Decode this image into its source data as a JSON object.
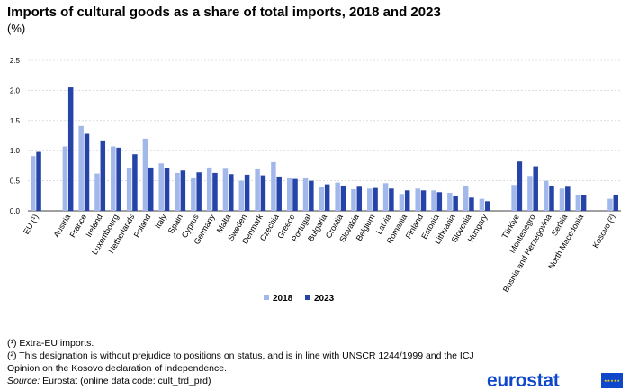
{
  "header": {
    "title": "Imports of cultural goods as a share of total imports, 2018 and 2023",
    "subtitle": "(%)"
  },
  "chart_data": {
    "type": "bar",
    "title": "Imports of cultural goods as a share of total imports, 2018 and 2023",
    "subtitle": "(%)",
    "xlabel": "",
    "ylabel": "",
    "ylim": [
      0,
      2.5
    ],
    "yticks": [
      "0.0",
      "0.5",
      "1.0",
      "1.5",
      "2.0",
      "2.5"
    ],
    "grid": true,
    "legend_position": "bottom-center",
    "categories": [
      "EU (¹)",
      "",
      "Austria",
      "France",
      "Ireland",
      "Luxembourg",
      "Netherlands",
      "Poland",
      "Italy",
      "Spain",
      "Cyprus",
      "Germany",
      "Malta",
      "Sweden",
      "Denmark",
      "Czechia",
      "Greece",
      "Portugal",
      "Bulgaria",
      "Croatia",
      "Slovakia",
      "Belgium",
      "Latvia",
      "Romania",
      "Finland",
      "Estonia",
      "Lithuania",
      "Slovenia",
      "Hungary",
      "",
      "Türkiye",
      "Montenegro",
      "Bosnia and Herzegovina",
      "Serbia",
      "North Macedonia",
      "",
      "Kosovo (²)"
    ],
    "series": [
      {
        "name": "2018",
        "color": "#a3b8ea",
        "values": [
          0.91,
          null,
          1.07,
          1.41,
          0.62,
          1.07,
          0.71,
          1.2,
          0.79,
          0.63,
          0.54,
          0.72,
          0.7,
          0.5,
          0.69,
          0.81,
          0.54,
          0.54,
          0.39,
          0.47,
          0.36,
          0.37,
          0.46,
          0.28,
          0.37,
          0.34,
          0.3,
          0.42,
          0.2,
          null,
          0.43,
          0.58,
          0.5,
          0.37,
          0.26,
          null,
          0.2
        ]
      },
      {
        "name": "2023",
        "color": "#2644a7",
        "values": [
          0.98,
          null,
          2.05,
          1.28,
          1.17,
          1.05,
          0.94,
          0.72,
          0.71,
          0.67,
          0.64,
          0.63,
          0.61,
          0.6,
          0.59,
          0.57,
          0.53,
          0.5,
          0.44,
          0.42,
          0.4,
          0.38,
          0.37,
          0.34,
          0.34,
          0.31,
          0.24,
          0.22,
          0.16,
          null,
          0.82,
          0.74,
          0.42,
          0.4,
          0.26,
          null,
          0.27
        ]
      }
    ]
  },
  "notes": {
    "note1": "(¹) Extra-EU imports.",
    "note2": "(²) This designation is without prejudice to positions on status, and is in line with UNSCR 1244/1999 and the ICJ Opinion on the Kosovo declaration of independence.",
    "source_label": "Source:",
    "source_text": "Eurostat (online data code: cult_trd_prd)"
  },
  "logo": {
    "text": "eurostat",
    "icon": "eu-flag-icon",
    "brand_color": "#0e47cb"
  }
}
